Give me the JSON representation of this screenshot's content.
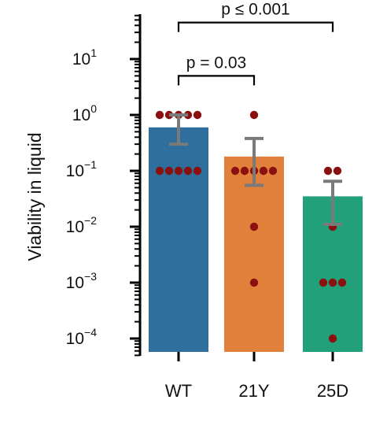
{
  "chart_data": {
    "type": "bar",
    "ylabel": "Viability in liquid",
    "yscale": "log",
    "ylim": [
      5e-05,
      300
    ],
    "yticks": [
      {
        "value": 10,
        "base": "10",
        "exp": "1"
      },
      {
        "value": 1,
        "base": "10",
        "exp": "0"
      },
      {
        "value": 0.1,
        "base": "10",
        "exp": "−1"
      },
      {
        "value": 0.01,
        "base": "10",
        "exp": "−2"
      },
      {
        "value": 0.001,
        "base": "10",
        "exp": "−3"
      },
      {
        "value": 0.0001,
        "base": "10",
        "exp": "−4"
      }
    ],
    "categories": [
      "WT",
      "21Y",
      "25D"
    ],
    "colors": [
      "#2e6f9e",
      "#e0803a",
      "#22a079"
    ],
    "point_color": "#8b1010",
    "errorbar_color": "#7a7a7a",
    "bars": [
      {
        "category": "WT",
        "value": 0.6,
        "err_low": 0.3,
        "err_high": 1.0,
        "points": [
          1,
          1,
          1,
          1,
          1,
          0.1,
          0.1,
          0.1,
          0.1,
          0.1
        ]
      },
      {
        "category": "21Y",
        "value": 0.18,
        "err_low": 0.055,
        "err_high": 0.38,
        "points": [
          1,
          0.1,
          0.1,
          0.1,
          0.1,
          0.1,
          0.01,
          0.001
        ]
      },
      {
        "category": "25D",
        "value": 0.035,
        "err_low": 0.011,
        "err_high": 0.065,
        "points": [
          0.1,
          0.1,
          0.01,
          0.001,
          0.001,
          0.001,
          0.0001
        ]
      }
    ],
    "annotations": [
      {
        "from": "WT",
        "to": "21Y",
        "label": "p = 0.03",
        "y": 5
      },
      {
        "from": "WT",
        "to": "25D",
        "label": "p ≤ 0.001",
        "y": 45
      }
    ]
  }
}
